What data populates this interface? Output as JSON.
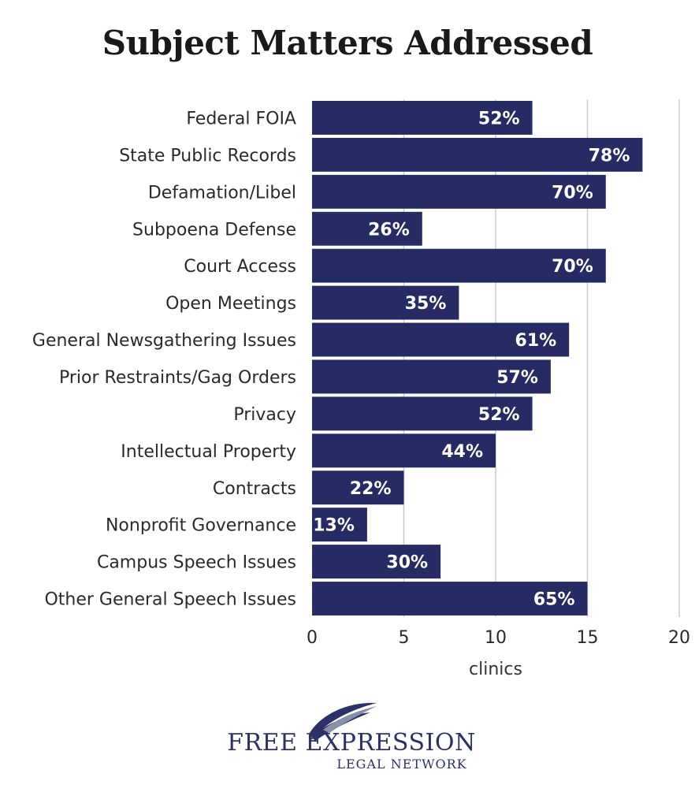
{
  "chart_data": {
    "type": "bar",
    "orientation": "horizontal",
    "title": "Subject Matters Addressed",
    "xlabel": "clinics",
    "ylabel": "",
    "xlim": [
      0,
      20
    ],
    "xticks": [
      "0",
      "5",
      "10",
      "15",
      "20"
    ],
    "grid": true,
    "categories": [
      "Federal FOIA",
      "State Public Records",
      "Defamation/Libel",
      "Subpoena Defense",
      "Court Access",
      "Open Meetings",
      "General Newsgathering Issues",
      "Prior Restraints/Gag Orders",
      "Privacy",
      "Intellectual Property",
      "Contracts",
      "Nonprofit Governance",
      "Campus Speech Issues",
      "Other General Speech Issues"
    ],
    "values": [
      12,
      18,
      16,
      6,
      16,
      8,
      14,
      13,
      12,
      10,
      5,
      3,
      7,
      15
    ],
    "data_labels": [
      "52%",
      "78%",
      "70%",
      "26%",
      "70%",
      "35%",
      "61%",
      "57%",
      "52%",
      "44%",
      "22%",
      "13%",
      "30%",
      "65%"
    ],
    "bar_color": "#262c63",
    "grid_color": "#cccccc"
  },
  "logo": {
    "name": "FREE EXPRESSION",
    "tagline": "LEGAL NETWORK",
    "color": "#2a3266"
  }
}
